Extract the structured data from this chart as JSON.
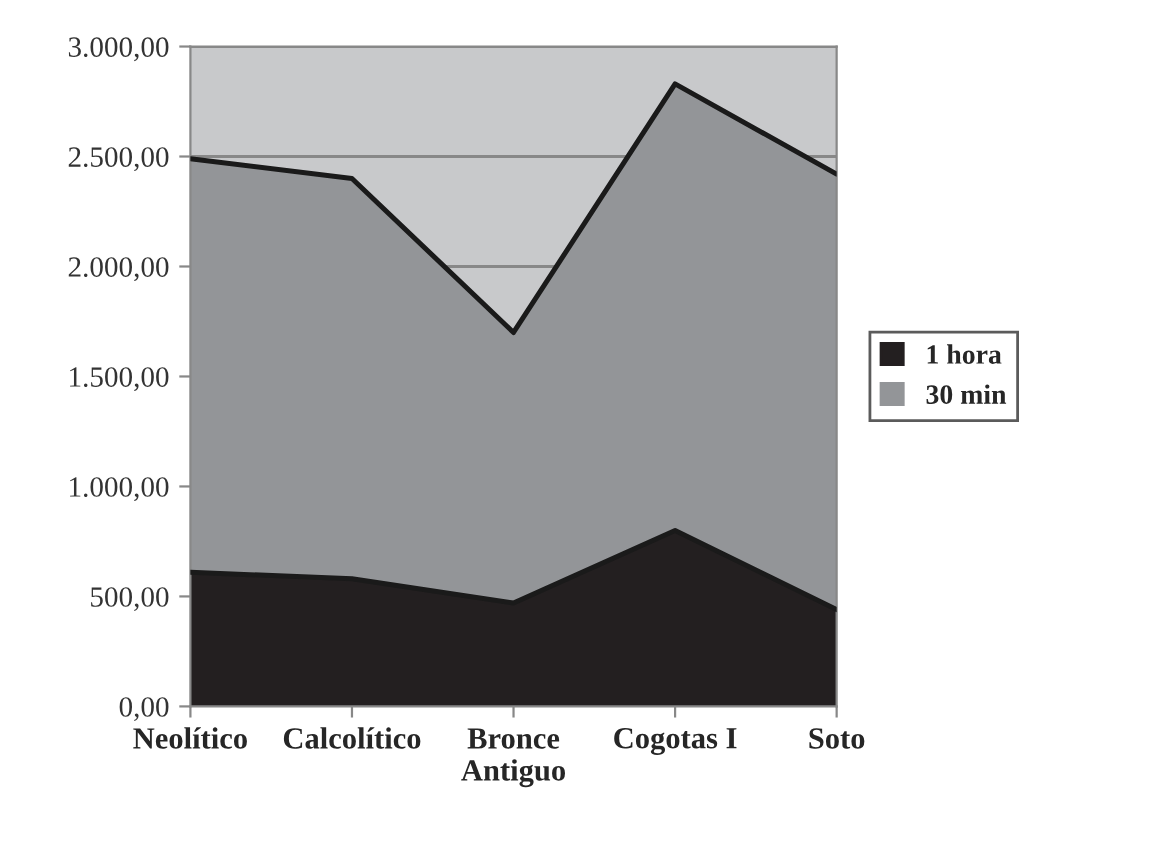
{
  "chart_data": {
    "type": "area",
    "stacked": true,
    "categories": [
      "Neolítico",
      "Calcolítico",
      "Bronce\nAntiguo",
      "Cogotas I",
      "Soto"
    ],
    "series": [
      {
        "name": "1 hora",
        "color": "#231f20",
        "values": [
          610,
          580,
          470,
          800,
          440
        ]
      },
      {
        "name": "30 min",
        "color": "#939598",
        "values": [
          1880,
          1820,
          1230,
          2030,
          1980
        ]
      }
    ],
    "ylim": [
      0,
      3000
    ],
    "yticks": [
      {
        "value": 0,
        "label": "0,00"
      },
      {
        "value": 500,
        "label": "500,00"
      },
      {
        "value": 1000,
        "label": "1.000,00"
      },
      {
        "value": 1500,
        "label": "1.500,00"
      },
      {
        "value": 2000,
        "label": "2.000,00"
      },
      {
        "value": 2500,
        "label": "2.500,00"
      },
      {
        "value": 3000,
        "label": "3.000,00"
      }
    ],
    "grid": "y",
    "legend": "right"
  }
}
